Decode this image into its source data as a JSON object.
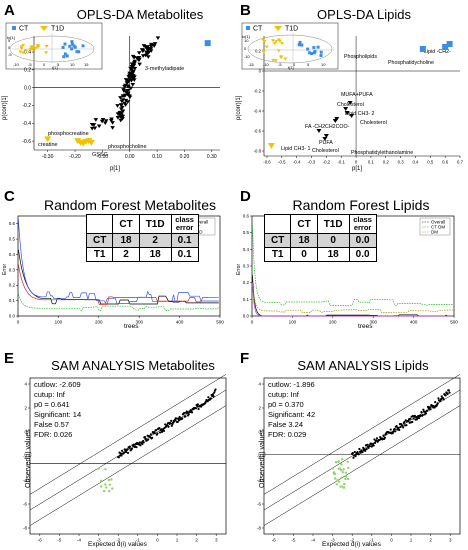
{
  "panels": [
    {
      "letter": "A",
      "title": "OPLS-DA Metabolites",
      "chart_data": {
        "type": "scatter",
        "xlabel": "p[1]",
        "ylabel": "p(corr)[1]",
        "xlim": [
          -0.35,
          0.33
        ],
        "ylim": [
          -0.7,
          0.58
        ],
        "xticks": [
          "-0.30",
          "-0.20",
          "-0.10",
          "0.00",
          "0.10",
          "0.20",
          "0.30"
        ],
        "yticks": [
          "-0.6",
          "-0.4",
          "-0.2",
          "0.0",
          "0.2",
          "0.4"
        ],
        "annotations": [
          "3-methyladipate",
          "phosphocreatine",
          "creatine",
          "GSSG",
          "phosphocholine"
        ],
        "inset": {
          "xlabel": "t[1]",
          "ylabel": "to[1]",
          "xticks": [
            "-10",
            "-5",
            "0",
            "5",
            "10",
            "15"
          ],
          "yticks": [
            "5",
            "0",
            "-5"
          ]
        },
        "legend": [
          "CT",
          "T1D"
        ]
      }
    },
    {
      "letter": "B",
      "title": "OPLS-DA Lipids",
      "chart_data": {
        "type": "scatter",
        "xlabel": "p[1]",
        "ylabel": "p(corr)[1]",
        "xlim": [
          -0.62,
          0.7
        ],
        "ylim": [
          -0.85,
          0.35
        ],
        "xticks": [
          "-0.6",
          "-0.5",
          "-0.4",
          "-0.3",
          "-0.2",
          "-0.1",
          "0",
          "0.1",
          "0.2",
          "0.3",
          "0.4",
          "0.5",
          "0.6",
          "0.7"
        ],
        "yticks": [
          "0.2",
          "0",
          "-0.2",
          "-0.4",
          "-0.6",
          "-0.8"
        ],
        "annotations": [
          "Phospholipids",
          "Lipid -CH2-",
          "Phosphatidycholine",
          "MUFA+PUFA",
          "Cholesterol",
          "Lipid CH3- 2",
          "Cholesterol",
          "FA -CH2CH2COO-",
          "PUFA",
          "Cholesterol",
          "Phosphatidylethanolamine",
          "Lipid CH3- 1"
        ],
        "inset": {
          "xlabel": "t[1]",
          "ylabel": "to[1]",
          "xticks": [
            "-15",
            "-10",
            "-5",
            "0",
            "5",
            "10"
          ],
          "yticks": [
            "10",
            "0",
            "-10"
          ]
        },
        "legend": [
          "CT",
          "T1D"
        ]
      }
    },
    {
      "letter": "C",
      "title": "Random Forest Metabolites",
      "chart_data": {
        "type": "line",
        "xlabel": "trees",
        "ylabel": "Error",
        "xlim": [
          0,
          500
        ],
        "ylim": [
          0,
          0.65
        ],
        "xticks": [
          "0",
          "100",
          "200",
          "300",
          "400",
          "500"
        ],
        "yticks": [
          "0.0",
          "0.1",
          "0.2",
          "0.3",
          "0.4",
          "0.5",
          "0.6"
        ],
        "legend": [
          "Overall",
          "CT",
          "T1D"
        ],
        "table": {
          "headers": [
            "",
            "CT",
            "T1D",
            "class error"
          ],
          "rows": [
            [
              "CT",
              "18",
              "2",
              "0.1"
            ],
            [
              "T1",
              "2",
              "18",
              "0.1"
            ]
          ]
        }
      }
    },
    {
      "letter": "D",
      "title": "Random Forest Lipids",
      "chart_data": {
        "type": "line",
        "xlabel": "trees",
        "ylabel": "Error",
        "xlim": [
          0,
          500
        ],
        "ylim": [
          0,
          0.6
        ],
        "xticks": [
          "0",
          "100",
          "200",
          "300",
          "400",
          "500"
        ],
        "yticks": [
          "0.0",
          "0.1",
          "0.2",
          "0.3",
          "0.4",
          "0.5",
          "0.6"
        ],
        "legend": [
          "Overall",
          "CT DM",
          "DM"
        ],
        "table": {
          "headers": [
            "",
            "CT",
            "T1D",
            "class error"
          ],
          "rows": [
            [
              "CT",
              "18",
              "0",
              "0.0"
            ],
            [
              "T1",
              "0",
              "18",
              "0.0"
            ]
          ]
        }
      }
    },
    {
      "letter": "E",
      "title": "SAM ANALYSIS Metabolites",
      "stats": [
        "cutlow: -2.609",
        "cutup: Inf",
        "p0 = 0.641",
        "Significant: 14",
        "False 0.57",
        "FDR: 0.026"
      ],
      "chart_data": {
        "type": "scatter",
        "xlabel": "Expected d(i) values",
        "ylabel": "Observed(i) values",
        "xlim": [
          -6.5,
          3.5
        ],
        "ylim": [
          -8.5,
          4.5
        ],
        "xticks": [
          "-6",
          "-5",
          "-4",
          "-3",
          "-2",
          "-1",
          "0",
          "1",
          "2",
          "3"
        ],
        "yticks": [
          "-8",
          "-6",
          "-4",
          "-2",
          "0",
          "2",
          "4"
        ],
        "cutlow": -2.609
      }
    },
    {
      "letter": "F",
      "title": "SAM ANALYSIS Lipids",
      "stats": [
        "cutlow: -1.896",
        "cutup: Inf",
        "p0 = 0.370",
        "Significant: 42",
        "False 3.24",
        "FDR: 0.029"
      ],
      "chart_data": {
        "type": "scatter",
        "xlabel": "Expected d(i) values",
        "ylabel": "Observed(i) values",
        "xlim": [
          -6.5,
          3.5
        ],
        "ylim": [
          -8.5,
          4.5
        ],
        "xticks": [
          "-6",
          "-5",
          "-4",
          "-3",
          "-2",
          "-1",
          "0",
          "1",
          "2",
          "3"
        ],
        "yticks": [
          "-8",
          "-6",
          "-4",
          "-2",
          "0",
          "2",
          "4"
        ],
        "cutlow": -1.896
      }
    }
  ],
  "colors": {
    "ct": "#3a8ee6",
    "t1d": "#f2c200",
    "rf_red": "#e02020",
    "rf_green": "#22bb22",
    "rf_blue": "#3355ee",
    "sam_green": "#8fd46a"
  }
}
